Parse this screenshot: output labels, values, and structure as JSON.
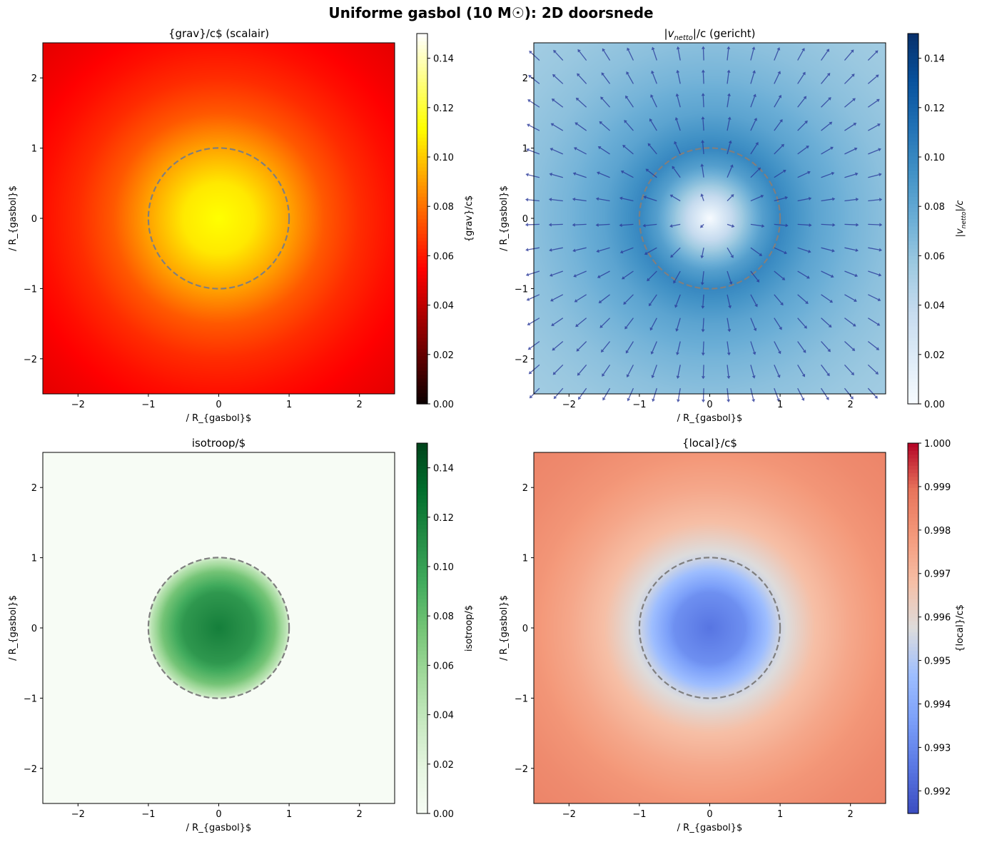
{
  "title": "Uniforme gasbol (10 M☉): 2D doorsnede",
  "chart_data": [
    {
      "type": "heatmap",
      "title": "{grav}/c$ (scalair)",
      "xlabel": "/ R_{gasbol}$",
      "ylabel": "/ R_{gasbol}$",
      "xlim": [
        -2.5,
        2.5
      ],
      "ylim": [
        -2.5,
        2.5
      ],
      "xticks": [
        -2,
        -1,
        0,
        1,
        2
      ],
      "yticks": [
        -2,
        -1,
        0,
        1,
        2
      ],
      "colormap": "hot",
      "clim": [
        0,
        0.15
      ],
      "colorbar_label": "{grav}/c$",
      "colorbar_ticks": [
        "0.00",
        "0.02",
        "0.04",
        "0.06",
        "0.08",
        "0.10",
        "0.12",
        "0.14"
      ],
      "radial_profile": {
        "r": [
          0,
          0.5,
          1,
          1.5,
          2,
          2.5,
          3,
          3.6
        ],
        "value": [
          0.112,
          0.107,
          0.0915,
          0.0747,
          0.0647,
          0.0579,
          0.0528,
          0.0482
        ]
      },
      "circle_radius": 1
    },
    {
      "type": "heatmap",
      "title_main": "|v",
      "title_sub": "netto",
      "title_rest": "|/c (gericht)",
      "xlabel": "/ R_{gasbol}$",
      "ylabel": "/ R_{gasbol}$",
      "xlim": [
        -2.5,
        2.5
      ],
      "ylim": [
        -2.5,
        2.5
      ],
      "xticks": [
        -2,
        -1,
        0,
        1,
        2
      ],
      "yticks": [
        -2,
        -1,
        0,
        1,
        2
      ],
      "colormap": "Blues",
      "clim": [
        0,
        0.15
      ],
      "colorbar_label_main": "|v",
      "colorbar_label_sub": "netto",
      "colorbar_label_rest": "|/c",
      "colorbar_ticks": [
        "0.00",
        "0.02",
        "0.04",
        "0.06",
        "0.08",
        "0.10",
        "0.12",
        "0.14"
      ],
      "radial_profile": {
        "r": [
          0,
          0.25,
          0.5,
          0.75,
          1,
          1.5,
          2,
          2.5,
          3,
          3.6
        ],
        "value": [
          0,
          0.03,
          0.06,
          0.085,
          0.1,
          0.082,
          0.071,
          0.063,
          0.058,
          0.054
        ]
      },
      "circle_radius": 1,
      "quiver": {
        "grid": 15,
        "range": [
          -2.42,
          2.25
        ],
        "direction": "radial-outward",
        "color": "#2b3a9a"
      }
    },
    {
      "type": "heatmap",
      "title": "isotroop/$",
      "xlabel": "/ R_{gasbol}$",
      "ylabel": "/ R_{gasbol}$",
      "xlim": [
        -2.5,
        2.5
      ],
      "ylim": [
        -2.5,
        2.5
      ],
      "xticks": [
        -2,
        -1,
        0,
        1,
        2
      ],
      "yticks": [
        -2,
        -1,
        0,
        1,
        2
      ],
      "colormap": "Greens",
      "clim": [
        0,
        0.15
      ],
      "colorbar_label": "isotroop/$",
      "colorbar_ticks": [
        "0.00",
        "0.02",
        "0.04",
        "0.06",
        "0.08",
        "0.10",
        "0.12",
        "0.14"
      ],
      "radial_profile": {
        "r": [
          0,
          0.5,
          0.8,
          0.95,
          1,
          1.005,
          3.6
        ],
        "value": [
          0.12,
          0.105,
          0.075,
          0.045,
          0.03,
          0,
          0
        ]
      },
      "circle_radius": 1
    },
    {
      "type": "heatmap",
      "title": "{local}/c$",
      "xlabel": "/ R_{gasbol}$",
      "ylabel": "/ R_{gasbol}$",
      "xlim": [
        -2.5,
        2.5
      ],
      "ylim": [
        -2.5,
        2.5
      ],
      "xticks": [
        -2,
        -1,
        0,
        1,
        2
      ],
      "yticks": [
        -2,
        -1,
        0,
        1,
        2
      ],
      "colormap": "coolwarm",
      "clim": [
        0.99148,
        1.0
      ],
      "colorbar_label": "{local}/c$",
      "colorbar_ticks": [
        "0.992",
        "0.993",
        "0.994",
        "0.995",
        "0.996",
        "0.997",
        "0.998",
        "0.999",
        "1.000"
      ],
      "radial_profile": {
        "r": [
          0,
          0.5,
          1,
          1.5,
          2,
          2.5,
          3,
          3.6
        ],
        "value": [
          0.9925,
          0.9932,
          0.9955,
          0.9968,
          0.9975,
          0.998,
          0.9983,
          0.9985
        ]
      },
      "circle_radius": 1
    }
  ]
}
